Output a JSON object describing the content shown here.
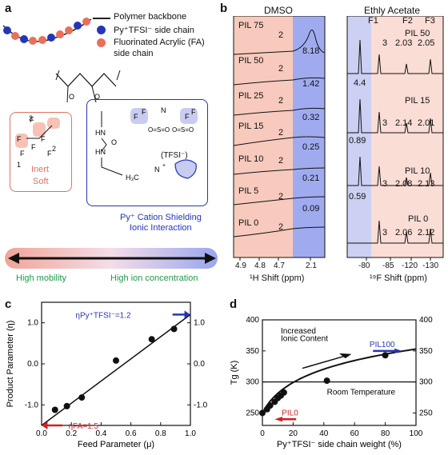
{
  "panels": {
    "a": "a",
    "b": "b",
    "c": "c",
    "d": "d"
  },
  "panel_a": {
    "legend": {
      "backbone": "Polymer backbone",
      "py_side": "Py⁺TFSI⁻ side chain",
      "fa_side_1": "Fluorinated Acrylic (FA)",
      "fa_side_2": "side chain"
    },
    "fa_box": {
      "l1": "Inert",
      "l2": "Soft",
      "n1": "1",
      "n2": "2",
      "n3": "3"
    },
    "py_box": {
      "tfsi": "(TFSI⁻)",
      "caption1": "Py⁺ Cation Shielding",
      "caption2": "Ionic Interaction"
    },
    "gradient": {
      "left": "High mobility",
      "right": "High ion concentration"
    },
    "colors": {
      "red": "#e8705a",
      "blue": "#2436b8",
      "green": "#1f9a4a"
    }
  },
  "panel_b": {
    "dmso_title": "DMSO",
    "ea_title": "Ethly Acetate",
    "dmso_rows": [
      {
        "name": "PIL 75",
        "peak": "2",
        "value": "8.18"
      },
      {
        "name": "PIL 50",
        "peak": "2",
        "value": "1.42"
      },
      {
        "name": "PIL 25",
        "peak": "2",
        "value": "0.32"
      },
      {
        "name": "PIL 15",
        "peak": "2",
        "value": "0.25"
      },
      {
        "name": "PIL 10",
        "peak": "2",
        "value": "0.21"
      },
      {
        "name": "PIL 5",
        "peak": "2",
        "value": "0.09"
      },
      {
        "name": "PIL 0",
        "peak": "2",
        "value": ""
      }
    ],
    "dmso_xticks": [
      "4.9",
      "4.8",
      "4.7",
      "2.1"
    ],
    "dmso_xlabel": "¹H Shift (ppm)",
    "ea_headers": {
      "f1": "F1",
      "f2": "F2",
      "f3": "F3"
    },
    "ea_rows": [
      {
        "name": "PIL 50",
        "v3": "3",
        "va": "2.03",
        "vb": "2.05",
        "ratio": ""
      },
      {
        "name": "PIL 15",
        "v3": "3",
        "va": "2.14",
        "vb": "2.01",
        "ratio": "4.4"
      },
      {
        "name": "PIL 10",
        "v3": "3",
        "va": "2.08",
        "vb": "2.13",
        "ratio": "0.89"
      },
      {
        "name": "PIL 0",
        "v3": "3",
        "va": "2.06",
        "vb": "2.12",
        "ratio": "0.59"
      }
    ],
    "ea_xticks": [
      "-80",
      "-85",
      "-120",
      "-130"
    ],
    "ea_xlabel": "¹⁹F Shift (ppm)"
  },
  "chart_data": [
    {
      "type": "scatter",
      "panel": "c",
      "xlabel": "Feed Parameter (μ)",
      "ylabel": "Product Parameter (η)",
      "xlim": [
        0,
        1.0
      ],
      "ylim": [
        -1.5,
        1.5
      ],
      "xticks": [
        "0.0",
        "0.2",
        "0.4",
        "0.6",
        "0.8",
        "1.0"
      ],
      "yticks_left": [
        "1.0",
        "0.0",
        "-1.0"
      ],
      "yticks_right": [
        "1.0",
        "0.0",
        "-1.0"
      ],
      "x": [
        0.09,
        0.17,
        0.27,
        0.5,
        0.74,
        0.89
      ],
      "y": [
        -1.12,
        -1.03,
        -0.82,
        0.08,
        0.6,
        0.85
      ],
      "fit_line": {
        "x": [
          0.0,
          1.0
        ],
        "y": [
          -1.5,
          1.2
        ]
      },
      "annotations": {
        "top": "ηPy⁺TFSI⁻=1.2",
        "bottom": "ηFA=1.5"
      }
    },
    {
      "type": "scatter",
      "panel": "d",
      "xlabel": "Py⁺TFSI⁻ side chain weight (%)",
      "ylabel": "Tg (K)",
      "xlim": [
        0,
        100
      ],
      "ylim": [
        230,
        400
      ],
      "xticks": [
        "0",
        "20",
        "40",
        "60",
        "80",
        "100"
      ],
      "yticks": [
        "250",
        "300",
        "350",
        "400"
      ],
      "x": [
        0,
        3,
        5,
        8,
        10,
        12,
        14,
        42,
        80
      ],
      "y": [
        250,
        256,
        262,
        268,
        274,
        278,
        283,
        302,
        343
      ],
      "reference_line": {
        "y": 300,
        "label": "Room Temperature"
      },
      "annotations": {
        "increase": "Increased",
        "increase2": "Ionic Content",
        "top": "PIL100",
        "bottom": "PIL0"
      }
    }
  ]
}
